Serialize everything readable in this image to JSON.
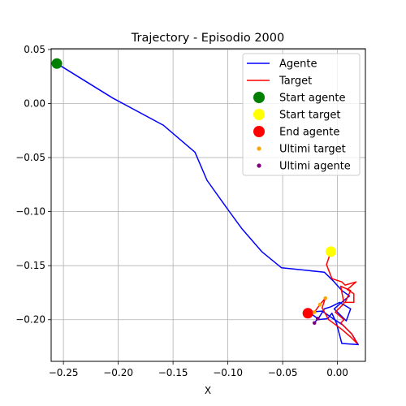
{
  "chart_data": {
    "type": "line",
    "title": "Trajectory - Episodio 2000",
    "xlabel": "X",
    "ylabel": "",
    "xlim": [
      -0.2612,
      0.0255
    ],
    "ylim": [
      -0.2385,
      0.0507
    ],
    "xticks": [
      -0.25,
      -0.2,
      -0.15,
      -0.1,
      -0.05,
      0.0
    ],
    "xtick_labels": [
      "−0.25",
      "−0.20",
      "−0.15",
      "−0.10",
      "−0.05",
      "0.00"
    ],
    "yticks": [
      0.05,
      0.0,
      -0.05,
      -0.1,
      -0.15,
      -0.2
    ],
    "ytick_labels": [
      "0.05",
      "0.00",
      "−0.05",
      "−0.10",
      "−0.15",
      "−0.20"
    ],
    "grid": true,
    "legend_position": "upper right",
    "series": [
      {
        "name": "Agente",
        "kind": "line",
        "color": "#0000ff",
        "points": [
          [
            -0.256,
            0.037
          ],
          [
            -0.205,
            0.005
          ],
          [
            -0.159,
            -0.02
          ],
          [
            -0.13,
            -0.045
          ],
          [
            -0.119,
            -0.071
          ],
          [
            -0.1,
            -0.098
          ],
          [
            -0.087,
            -0.116
          ],
          [
            -0.069,
            -0.137
          ],
          [
            -0.051,
            -0.152
          ],
          [
            -0.012,
            -0.156
          ],
          [
            -0.004,
            -0.164
          ],
          [
            0.004,
            -0.173
          ],
          [
            0.011,
            -0.178
          ],
          [
            0.005,
            -0.183
          ],
          [
            -0.003,
            -0.19
          ],
          [
            0.008,
            -0.201
          ],
          [
            0.012,
            -0.19
          ],
          [
            0.002,
            -0.184
          ],
          [
            -0.006,
            -0.188
          ],
          [
            -0.012,
            -0.19
          ],
          [
            -0.018,
            -0.2
          ],
          [
            -0.009,
            -0.199
          ],
          [
            -0.005,
            -0.194
          ],
          [
            -0.001,
            -0.203
          ],
          [
            0.004,
            -0.222
          ],
          [
            0.019,
            -0.223
          ],
          [
            0.013,
            -0.213
          ],
          [
            0.005,
            -0.205
          ],
          [
            -0.004,
            -0.199
          ],
          [
            -0.014,
            -0.192
          ],
          [
            -0.026,
            -0.193
          ],
          [
            -0.018,
            -0.199
          ],
          [
            -0.021,
            -0.203
          ]
        ]
      },
      {
        "name": "Target",
        "kind": "line",
        "color": "#ff0000",
        "points": [
          [
            -0.006,
            -0.137
          ],
          [
            -0.01,
            -0.149
          ],
          [
            -0.005,
            -0.162
          ],
          [
            0.004,
            -0.165
          ],
          [
            0.007,
            -0.168
          ],
          [
            0.017,
            -0.165
          ],
          [
            0.009,
            -0.172
          ],
          [
            0.015,
            -0.176
          ],
          [
            0.015,
            -0.184
          ],
          [
            0.007,
            -0.184
          ],
          [
            0.012,
            -0.173
          ],
          [
            0.003,
            -0.169
          ],
          [
            0.006,
            -0.185
          ],
          [
            -0.002,
            -0.193
          ],
          [
            0.006,
            -0.2
          ],
          [
            0.003,
            -0.203
          ],
          [
            0.013,
            -0.213
          ],
          [
            0.018,
            -0.222
          ],
          [
            0.012,
            -0.216
          ],
          [
            0.004,
            -0.209
          ],
          [
            -0.008,
            -0.2
          ],
          [
            -0.014,
            -0.189
          ],
          [
            -0.011,
            -0.18
          ],
          [
            -0.016,
            -0.186
          ],
          [
            -0.021,
            -0.193
          ],
          [
            -0.026,
            -0.195
          ],
          [
            -0.027,
            -0.194
          ]
        ]
      },
      {
        "name": "Start agente",
        "kind": "marker",
        "color": "#008000",
        "radius": 6.5,
        "points": [
          [
            -0.256,
            0.037
          ]
        ]
      },
      {
        "name": "Start target",
        "kind": "marker",
        "color": "#ffff00",
        "radius": 6.5,
        "points": [
          [
            -0.006,
            -0.137
          ]
        ]
      },
      {
        "name": "End agente",
        "kind": "marker",
        "color": "#ff0000",
        "radius": 6.5,
        "points": [
          [
            -0.027,
            -0.194
          ]
        ]
      },
      {
        "name": "Ultimi target",
        "kind": "marker",
        "color": "#ffa500",
        "radius": 2.3,
        "points": [
          [
            -0.011,
            -0.18
          ],
          [
            -0.016,
            -0.186
          ],
          [
            -0.021,
            -0.193
          ]
        ]
      },
      {
        "name": "Ultimi agente",
        "kind": "marker",
        "color": "#800080",
        "radius": 2.3,
        "points": [
          [
            -0.018,
            -0.199
          ],
          [
            -0.021,
            -0.203
          ]
        ]
      }
    ]
  }
}
